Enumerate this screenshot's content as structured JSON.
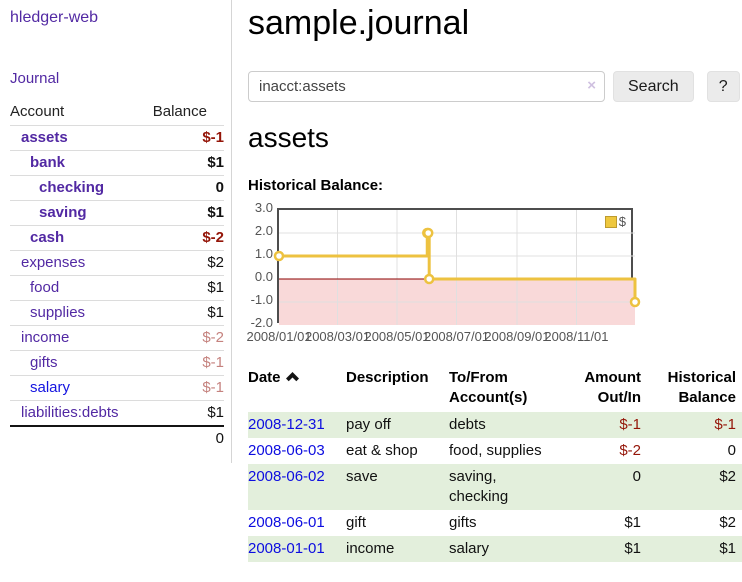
{
  "app": {
    "title": "hledger-web"
  },
  "sidebar": {
    "journal_link": "Journal",
    "headers": {
      "account": "Account",
      "balance": "Balance"
    },
    "rows": [
      {
        "account": "assets",
        "balance": "$-1"
      },
      {
        "account": "bank",
        "balance": "$1"
      },
      {
        "account": "checking",
        "balance": "0"
      },
      {
        "account": "saving",
        "balance": "$1"
      },
      {
        "account": "cash",
        "balance": "$-2"
      },
      {
        "account": "expenses",
        "balance": "$2"
      },
      {
        "account": "food",
        "balance": "$1"
      },
      {
        "account": "supplies",
        "balance": "$1"
      },
      {
        "account": "income",
        "balance": "$-2"
      },
      {
        "account": "gifts",
        "balance": "$-1"
      },
      {
        "account": "salary",
        "balance": "$-1"
      },
      {
        "account": "liabilities:debts",
        "balance": "$1"
      }
    ],
    "total": "0"
  },
  "main": {
    "title": "sample.journal",
    "search": {
      "value": "inacct:assets",
      "clear_icon": "×",
      "search_button": "Search",
      "help_button": "?"
    },
    "account_heading": "assets",
    "chart_title": "Historical Balance:"
  },
  "register": {
    "headers": {
      "date": "Date",
      "description": "Description",
      "account": "To/From Account(s)",
      "amount": "Amount Out/In",
      "balance": "Historical Balance"
    },
    "rows": [
      {
        "date": "2008-12-31",
        "description": "pay off",
        "account": "debts",
        "amount": "$-1",
        "balance": "$-1"
      },
      {
        "date": "2008-06-03",
        "description": "eat & shop",
        "account": "food, supplies",
        "amount": "$-2",
        "balance": "0"
      },
      {
        "date": "2008-06-02",
        "description": "save",
        "account": "saving, checking",
        "amount": "0",
        "balance": "$2"
      },
      {
        "date": "2008-06-01",
        "description": "gift",
        "account": "gifts",
        "amount": "$1",
        "balance": "$2"
      },
      {
        "date": "2008-01-01",
        "description": "income",
        "account": "salary",
        "amount": "$1",
        "balance": "$1"
      }
    ]
  },
  "chart_data": {
    "type": "line",
    "title": "Historical Balance",
    "steps": true,
    "legend": [
      {
        "label": "$",
        "color": "#edc240"
      }
    ],
    "x_unit": "days since 2008-01-01",
    "xlim": [
      0,
      365
    ],
    "ylim": [
      -2,
      3
    ],
    "series": [
      {
        "name": "$",
        "color": "#edc240",
        "points": [
          {
            "date": "2008-01-01",
            "x": 0,
            "y": 1
          },
          {
            "date": "2008-06-01",
            "x": 152,
            "y": 2
          },
          {
            "date": "2008-06-02",
            "x": 153,
            "y": 2
          },
          {
            "date": "2008-06-03",
            "x": 154,
            "y": 0
          },
          {
            "date": "2008-12-31",
            "x": 365,
            "y": -1
          }
        ]
      }
    ],
    "y_ticks": [
      {
        "value": 3,
        "label": "3.0"
      },
      {
        "value": 2,
        "label": "2.0"
      },
      {
        "value": 1,
        "label": "1.0"
      },
      {
        "value": 0,
        "label": "0.0"
      },
      {
        "value": -1,
        "label": "-1.0"
      },
      {
        "value": -2,
        "label": "-2.0"
      }
    ],
    "x_ticks": [
      {
        "x": 0,
        "label": "2008/01/01"
      },
      {
        "x": 60,
        "label": "2008/03/01"
      },
      {
        "x": 121,
        "label": "2008/05/01"
      },
      {
        "x": 182,
        "label": "2008/07/01"
      },
      {
        "x": 244,
        "label": "2008/09/01"
      },
      {
        "x": 305,
        "label": "2008/11/01"
      }
    ],
    "grid": true,
    "grid_color": "#e0e0e0",
    "zero_line_color": "#8b0000",
    "negative_region_color": "#f9d9d9"
  }
}
